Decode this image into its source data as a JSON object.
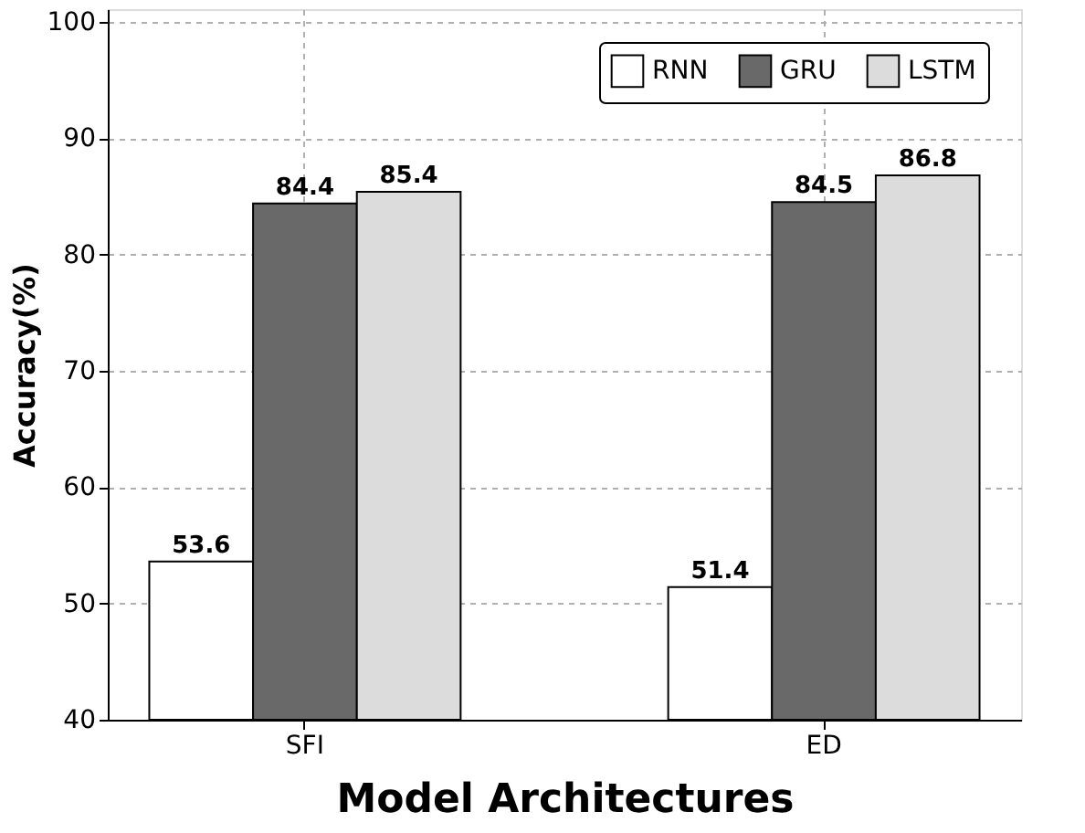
{
  "chart_data": {
    "type": "bar",
    "xlabel": "Model Architectures",
    "ylabel": "Accuracy(%)",
    "categories": [
      "SFI",
      "ED"
    ],
    "series": [
      {
        "name": "RNN",
        "color": "#ffffff",
        "values": [
          53.6,
          51.4
        ]
      },
      {
        "name": "GRU",
        "color": "#696969",
        "values": [
          84.4,
          84.5
        ]
      },
      {
        "name": "LSTM",
        "color": "#dcdcdc",
        "values": [
          85.4,
          86.8
        ]
      }
    ],
    "ylim": [
      40,
      101.1
    ],
    "yticks": [
      40,
      50,
      60,
      70,
      80,
      90,
      100
    ],
    "grid": true,
    "legend": "top right",
    "data_labels": true
  }
}
